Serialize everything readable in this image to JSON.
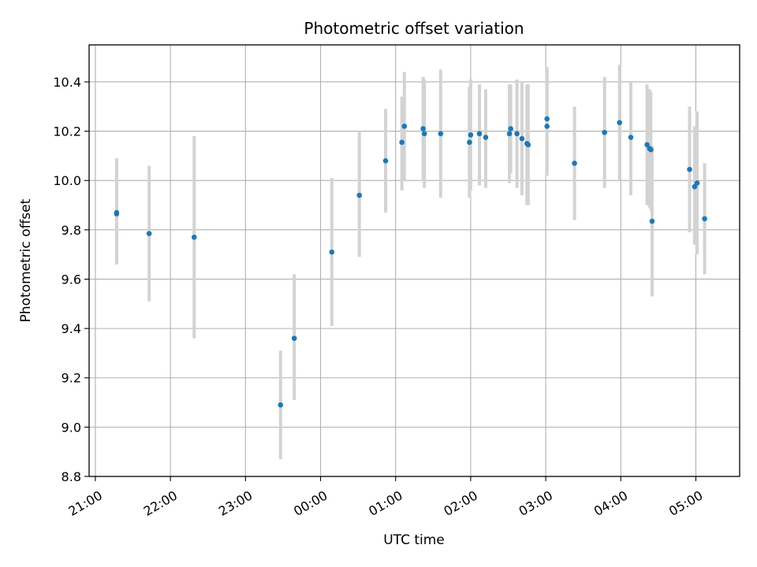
{
  "chart_data": {
    "type": "scatter",
    "title": "Photometric offset variation",
    "xlabel": "UTC time",
    "ylabel": "Photometric offset",
    "ylim": [
      8.8,
      10.55
    ],
    "xlim": [
      "20:55",
      "05:35"
    ],
    "grid": true,
    "x_ticks": [
      "21:00",
      "22:00",
      "23:00",
      "00:00",
      "01:00",
      "02:00",
      "03:00",
      "04:00",
      "05:00"
    ],
    "y_ticks": [
      "8.8",
      "9.0",
      "9.2",
      "9.4",
      "9.6",
      "9.8",
      "10.0",
      "10.2",
      "10.4"
    ],
    "colors": {
      "point": "#1f77b4",
      "errorbar": "#d3d3d3",
      "grid": "#b0b0b0"
    },
    "points": [
      {
        "x": "21:17",
        "y": 9.87,
        "err_low": 9.66,
        "err_high": 10.09
      },
      {
        "x": "21:17",
        "y": 9.865,
        "err_low": 9.66,
        "err_high": 10.08
      },
      {
        "x": "21:43",
        "y": 9.785,
        "err_low": 9.51,
        "err_high": 10.06
      },
      {
        "x": "22:19",
        "y": 9.77,
        "err_low": 9.36,
        "err_high": 10.18
      },
      {
        "x": "23:28",
        "y": 9.09,
        "err_low": 8.87,
        "err_high": 9.31
      },
      {
        "x": "23:39",
        "y": 9.36,
        "err_low": 9.11,
        "err_high": 9.62
      },
      {
        "x": "00:09",
        "y": 9.71,
        "err_low": 9.41,
        "err_high": 10.01
      },
      {
        "x": "00:31",
        "y": 9.94,
        "err_low": 9.69,
        "err_high": 10.2
      },
      {
        "x": "00:52",
        "y": 10.08,
        "err_low": 9.87,
        "err_high": 10.29
      },
      {
        "x": "01:05",
        "y": 10.155,
        "err_low": 9.96,
        "err_high": 10.34
      },
      {
        "x": "01:07",
        "y": 10.22,
        "err_low": 10.0,
        "err_high": 10.44
      },
      {
        "x": "01:22",
        "y": 10.21,
        "err_low": 10.0,
        "err_high": 10.42
      },
      {
        "x": "01:23",
        "y": 10.19,
        "err_low": 9.97,
        "err_high": 10.41
      },
      {
        "x": "01:36",
        "y": 10.19,
        "err_low": 9.93,
        "err_high": 10.45
      },
      {
        "x": "01:59",
        "y": 10.155,
        "err_low": 9.93,
        "err_high": 10.38
      },
      {
        "x": "02:00",
        "y": 10.185,
        "err_low": 9.96,
        "err_high": 10.41
      },
      {
        "x": "02:07",
        "y": 10.19,
        "err_low": 9.98,
        "err_high": 10.39
      },
      {
        "x": "02:12",
        "y": 10.175,
        "err_low": 9.97,
        "err_high": 10.37
      },
      {
        "x": "02:31",
        "y": 10.19,
        "err_low": 9.99,
        "err_high": 10.39
      },
      {
        "x": "02:32",
        "y": 10.21,
        "err_low": 10.03,
        "err_high": 10.39
      },
      {
        "x": "02:37",
        "y": 10.19,
        "err_low": 9.97,
        "err_high": 10.41
      },
      {
        "x": "02:41",
        "y": 10.17,
        "err_low": 9.94,
        "err_high": 10.4
      },
      {
        "x": "02:45",
        "y": 10.15,
        "err_low": 9.9,
        "err_high": 10.39
      },
      {
        "x": "02:46",
        "y": 10.145,
        "err_low": 9.9,
        "err_high": 10.39
      },
      {
        "x": "03:01",
        "y": 10.22,
        "err_low": 10.02,
        "err_high": 10.42
      },
      {
        "x": "03:01",
        "y": 10.25,
        "err_low": 10.04,
        "err_high": 10.46
      },
      {
        "x": "03:23",
        "y": 10.07,
        "err_low": 9.84,
        "err_high": 10.3
      },
      {
        "x": "03:47",
        "y": 10.195,
        "err_low": 9.97,
        "err_high": 10.42
      },
      {
        "x": "03:59",
        "y": 10.235,
        "err_low": 10.0,
        "err_high": 10.47
      },
      {
        "x": "04:08",
        "y": 10.175,
        "err_low": 9.94,
        "err_high": 10.4
      },
      {
        "x": "04:21",
        "y": 10.145,
        "err_low": 9.9,
        "err_high": 10.39
      },
      {
        "x": "04:23",
        "y": 10.13,
        "err_low": 9.89,
        "err_high": 10.37
      },
      {
        "x": "04:24",
        "y": 10.125,
        "err_low": 9.88,
        "err_high": 10.36
      },
      {
        "x": "04:25",
        "y": 9.835,
        "err_low": 9.53,
        "err_high": 10.14
      },
      {
        "x": "04:55",
        "y": 10.045,
        "err_low": 9.79,
        "err_high": 10.3
      },
      {
        "x": "04:59",
        "y": 9.975,
        "err_low": 9.74,
        "err_high": 10.22
      },
      {
        "x": "05:01",
        "y": 9.99,
        "err_low": 9.7,
        "err_high": 10.28
      },
      {
        "x": "05:07",
        "y": 9.845,
        "err_low": 9.62,
        "err_high": 10.07
      }
    ]
  }
}
